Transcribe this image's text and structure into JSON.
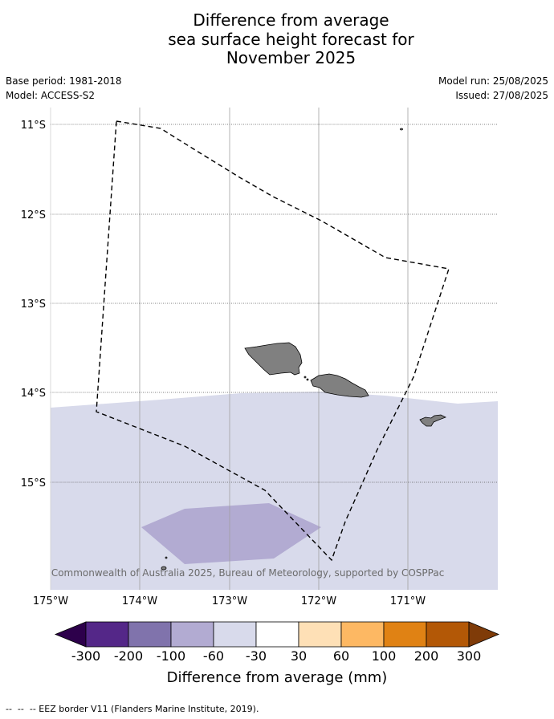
{
  "header": {
    "title": "Difference from average\nsea surface height forecast for\nNovember 2025",
    "base_period": "Base period: 1981-2018",
    "model": "Model: ACCESS-S2",
    "model_run": "Model run: 25/08/2025",
    "issued": "Issued: 27/08/2025"
  },
  "map": {
    "lat_labels": [
      "11°S",
      "12°S",
      "13°S",
      "14°S",
      "15°S"
    ],
    "lon_labels": [
      "175°W",
      "174°W",
      "173°W",
      "172°W",
      "171°W"
    ],
    "extent": {
      "lon_min": -175,
      "lon_max": -170,
      "lat_max": -10.95,
      "lat_min": -16.3
    },
    "land_color": "#808080",
    "copyright": "© Commonwealth of Australia 2025, Bureau of Meteorology, supported by COSPPac"
  },
  "colorbar": {
    "ticks": [
      "-300",
      "-200",
      "-100",
      "-60",
      "-30",
      "30",
      "60",
      "100",
      "200",
      "300"
    ],
    "colors": [
      "#2d004b",
      "#542788",
      "#8073ac",
      "#b2abd2",
      "#d8daeb",
      "#ffffff",
      "#fee0b6",
      "#fdb863",
      "#e08214",
      "#b35806",
      "#7f3b08"
    ],
    "label": "Difference from average (mm)"
  },
  "footnote": "--  --  -- EEZ border V11 (Flanders Marine Institute, 2019)."
}
